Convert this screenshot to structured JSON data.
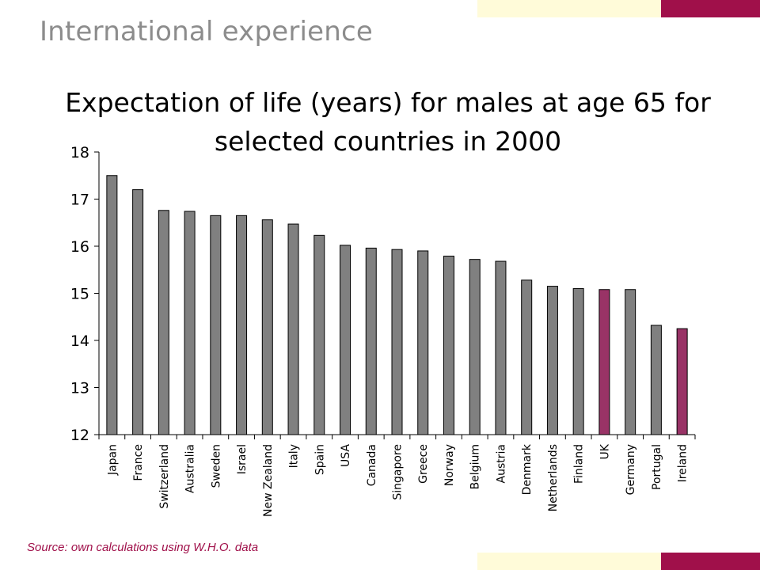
{
  "slide": {
    "heading": "International experience",
    "source": "Source: own calculations using W.H.O. data"
  },
  "colors": {
    "default_bar": "#808080",
    "highlight_bar": "#993366",
    "accent": "#A0104A",
    "cream": "#FFFBD9"
  },
  "chart_data": {
    "type": "bar",
    "title_lines": [
      "Expectation of life (years) for males at age 65 for",
      "selected countries in 2000"
    ],
    "xlabel": "",
    "ylabel": "",
    "ylim": [
      12,
      18
    ],
    "yticks": [
      12,
      13,
      14,
      15,
      16,
      17,
      18
    ],
    "grid": false,
    "legend": "none",
    "categories": [
      "Japan",
      "France",
      "Switzerland",
      "Australia",
      "Sweden",
      "Israel",
      "New Zealand",
      "Italy",
      "Spain",
      "USA",
      "Canada",
      "Singapore",
      "Greece",
      "Norway",
      "Belgium",
      "Austria",
      "Denmark",
      "Netherlands",
      "Finland",
      "UK",
      "Germany",
      "Portugal",
      "Ireland"
    ],
    "values": [
      17.5,
      17.2,
      16.76,
      16.74,
      16.65,
      16.65,
      16.56,
      16.47,
      16.23,
      16.02,
      15.96,
      15.93,
      15.9,
      15.79,
      15.72,
      15.68,
      15.28,
      15.15,
      15.1,
      15.08,
      15.08,
      14.32,
      14.25
    ],
    "highlighted": [
      "UK",
      "Ireland"
    ]
  }
}
